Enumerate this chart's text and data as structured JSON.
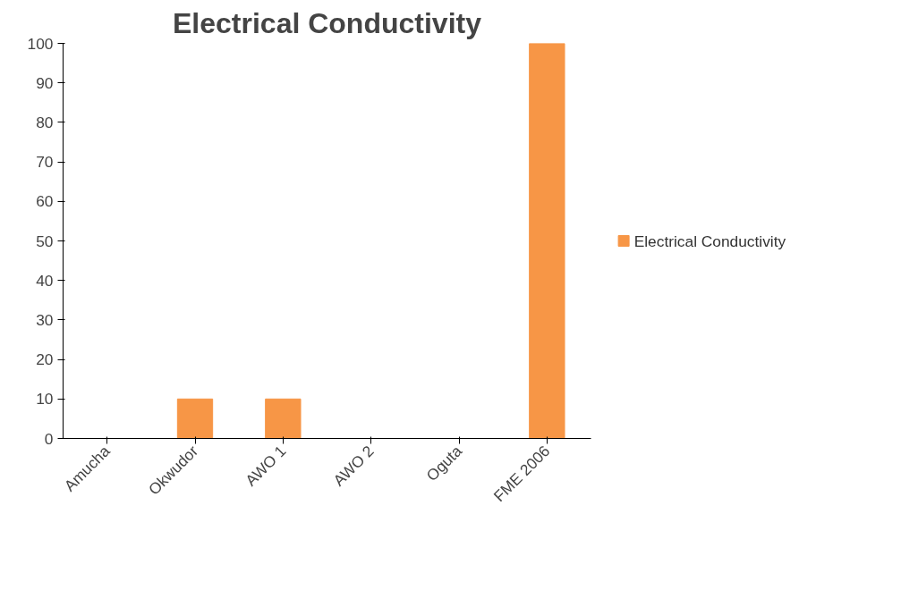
{
  "chart_data": {
    "type": "bar",
    "title": "Electrical Conductivity",
    "categories": [
      "Amucha",
      "Okwudor",
      "AWO 1",
      "AWO 2",
      "Oguta",
      "FME 2006"
    ],
    "series": [
      {
        "name": "Electrical Conductivity",
        "color": "#f79646",
        "values": [
          0,
          10,
          10,
          0,
          0,
          100
        ]
      }
    ],
    "ylim": [
      0,
      100
    ],
    "yticks": [
      0,
      10,
      20,
      30,
      40,
      50,
      60,
      70,
      80,
      90,
      100
    ],
    "grid": false,
    "legend": "right"
  }
}
